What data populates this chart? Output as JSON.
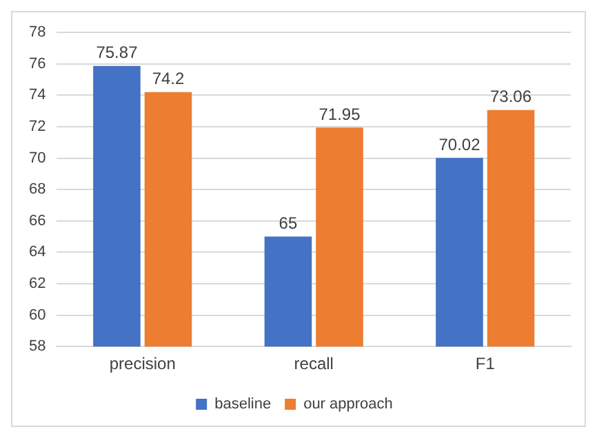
{
  "chart_data": {
    "type": "bar",
    "categories": [
      "precision",
      "recall",
      "F1"
    ],
    "series": [
      {
        "name": "baseline",
        "color": "#4472c4",
        "values": [
          75.87,
          65,
          70.02
        ]
      },
      {
        "name": "our approach",
        "color": "#ed7d31",
        "values": [
          74.2,
          71.95,
          73.06
        ]
      }
    ],
    "ylim": [
      58,
      78
    ],
    "yticks": [
      58,
      60,
      62,
      64,
      66,
      68,
      70,
      72,
      74,
      76,
      78
    ],
    "grid": "y",
    "legend": "bottom",
    "data_labels": true
  }
}
